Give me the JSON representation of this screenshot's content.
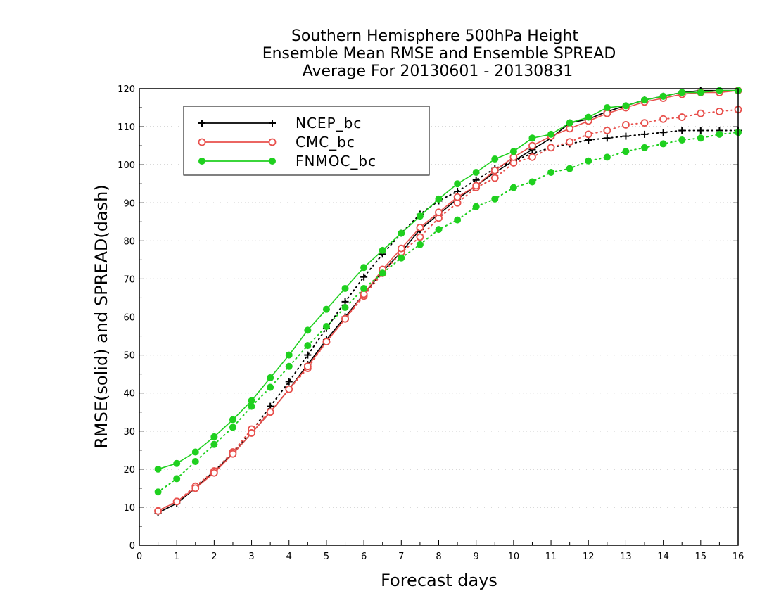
{
  "chart_data": {
    "type": "line",
    "title": [
      "Southern Hemisphere 500hPa Height",
      "Ensemble Mean RMSE and Ensemble SPREAD",
      "Average For 20130601 - 20130831"
    ],
    "xlabel": "Forecast days",
    "ylabel": "RMSE(solid) and SPREAD(dash)",
    "xlim": [
      0,
      16
    ],
    "ylim": [
      0,
      120
    ],
    "xticks": [
      0,
      1,
      2,
      3,
      4,
      5,
      6,
      7,
      8,
      9,
      10,
      11,
      12,
      13,
      14,
      15,
      16
    ],
    "yticks": [
      0,
      10,
      20,
      30,
      40,
      50,
      60,
      70,
      80,
      90,
      100,
      110,
      120
    ],
    "grid": "horizontal-dotted",
    "legend_position": "top-left",
    "x": [
      0.5,
      1,
      1.5,
      2,
      2.5,
      3,
      3.5,
      4,
      4.5,
      5,
      5.5,
      6,
      6.5,
      7,
      7.5,
      8,
      8.5,
      9,
      9.5,
      10,
      10.5,
      11,
      11.5,
      12,
      12.5,
      13,
      13.5,
      14,
      14.5,
      15,
      15.5,
      16
    ],
    "series": [
      {
        "name": "NCEP_bc",
        "color": "#000000",
        "marker": "plus",
        "rmse": [
          8.5,
          11,
          15,
          19.5,
          24,
          29.5,
          35,
          41,
          47.5,
          54,
          60,
          66,
          72,
          77,
          83,
          87,
          91,
          94.5,
          98,
          101,
          104,
          107,
          111,
          112,
          114,
          115.5,
          117,
          118,
          119,
          119.5,
          119.5,
          119.5
        ],
        "spread": [
          9,
          11.5,
          15,
          19.5,
          24.5,
          30,
          36.5,
          43,
          50,
          57,
          64,
          70.5,
          76.5,
          82,
          87,
          90.5,
          93,
          96,
          99,
          101,
          103,
          104.5,
          105.5,
          106.5,
          107,
          107.5,
          108,
          108.5,
          109,
          109,
          109,
          109
        ]
      },
      {
        "name": "CMC_bc",
        "color": "#e8504c",
        "marker": "open-circle",
        "rmse": [
          9,
          11.5,
          15,
          19,
          24,
          29.5,
          35,
          41,
          47,
          53.5,
          59.5,
          66,
          72.5,
          78,
          83.5,
          87.5,
          91.5,
          94.5,
          98.5,
          102,
          105,
          107.5,
          109.5,
          111.5,
          113.5,
          115,
          116.5,
          117.5,
          118.5,
          119,
          119,
          119.5
        ],
        "spread": [
          9,
          11.5,
          15.5,
          19.5,
          24.5,
          30.5,
          35,
          41,
          46.5,
          53.5,
          59.5,
          65.5,
          71.5,
          77,
          81,
          86,
          90,
          94,
          96.5,
          100.5,
          102,
          104.5,
          106,
          108,
          109,
          110.5,
          111,
          112,
          112.5,
          113.5,
          114,
          114.5
        ]
      },
      {
        "name": "FNMOC_bc",
        "color": "#1fd01f",
        "marker": "filled-circle",
        "rmse": [
          20,
          21.5,
          24.5,
          28.5,
          33,
          38,
          44,
          50,
          56.5,
          62,
          67.5,
          73,
          77.5,
          82,
          86.5,
          91,
          95,
          98,
          101.5,
          103.5,
          107,
          108,
          111,
          112.5,
          115,
          115.5,
          117,
          118,
          119,
          119,
          119.5,
          119.5
        ],
        "spread": [
          14,
          17.5,
          22,
          26.5,
          31,
          36.5,
          41.5,
          47,
          52.5,
          57.5,
          62.5,
          67.5,
          71.5,
          75.5,
          79,
          83,
          85.5,
          89,
          91,
          94,
          95.5,
          98,
          99,
          101,
          102,
          103.5,
          104.5,
          105.5,
          106.5,
          107,
          108,
          108.5
        ]
      }
    ]
  }
}
